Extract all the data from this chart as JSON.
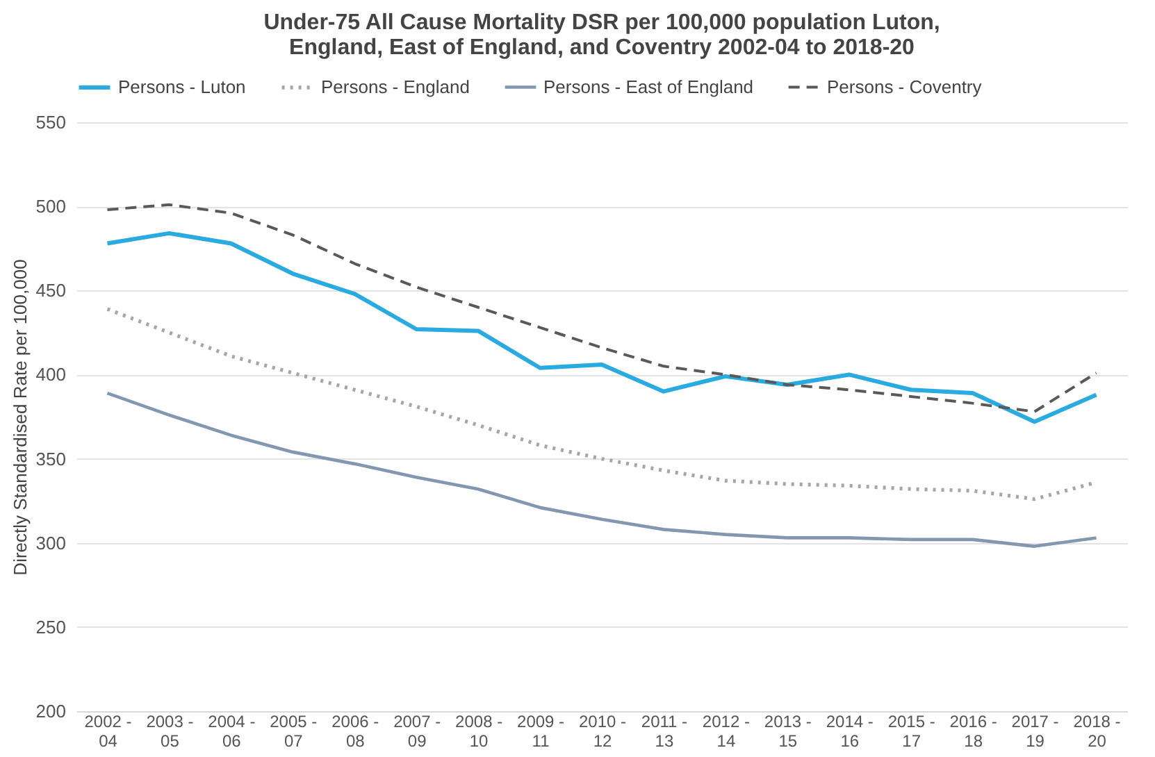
{
  "chart_data": {
    "type": "line",
    "title": "Under-75 All Cause Mortality DSR per 100,000 population Luton, England, East of England, and Coventry 2002-04 to 2018-20",
    "ylabel": "Directly Standardised Rate per 100,000",
    "categories": [
      "2002 -\n04",
      "2003 -\n05",
      "2004 -\n06",
      "2005 -\n07",
      "2006 -\n08",
      "2007 -\n09",
      "2008 -\n10",
      "2009 -\n11",
      "2010 -\n12",
      "2011 -\n13",
      "2012 -\n14",
      "2013 -\n15",
      "2014 -\n16",
      "2015 -\n17",
      "2016 -\n18",
      "2017 -\n19",
      "2018 -\n20"
    ],
    "series": [
      {
        "name": "Persons - Luton",
        "color": "#29abe2",
        "line_style": "solid",
        "values": [
          478,
          484,
          478,
          460,
          448,
          427,
          426,
          404,
          406,
          390,
          399,
          394,
          400,
          391,
          389,
          372,
          388
        ]
      },
      {
        "name": "Persons - England",
        "color": "#a6a6a6",
        "line_style": "dotted",
        "values": [
          439,
          425,
          411,
          401,
          391,
          381,
          370,
          358,
          350,
          343,
          337,
          335,
          334,
          332,
          331,
          326,
          336
        ]
      },
      {
        "name": "Persons - East of England",
        "color": "#8497b0",
        "line_style": "solid",
        "values": [
          389,
          376,
          364,
          354,
          347,
          339,
          332,
          321,
          314,
          308,
          305,
          303,
          303,
          302,
          302,
          298,
          303
        ]
      },
      {
        "name": "Persons - Coventry",
        "color": "#595959",
        "line_style": "dashed",
        "values": [
          498,
          501,
          496,
          483,
          466,
          452,
          440,
          428,
          416,
          405,
          400,
          394,
          391,
          387,
          383,
          378,
          401
        ]
      }
    ],
    "ylim": [
      200,
      550
    ],
    "yticks": [
      200,
      250,
      300,
      350,
      400,
      450,
      500,
      550
    ],
    "grid": "y",
    "legend": "top",
    "marker": "none"
  }
}
